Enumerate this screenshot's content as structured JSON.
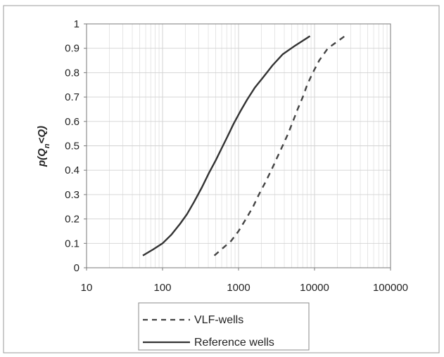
{
  "chart_data": {
    "type": "line",
    "title": "",
    "xlabel": "",
    "ylabel": "p(Q_n<Q)",
    "ylabel_parts": {
      "main": "p(Q",
      "sub": "n",
      "rest": "<Q)"
    },
    "x_scale": "log",
    "xlim": [
      10,
      100000
    ],
    "ylim": [
      0,
      1
    ],
    "x_ticks": [
      10,
      100,
      1000,
      10000,
      100000
    ],
    "x_tick_labels": [
      "10",
      "100",
      "1000",
      "10000",
      "100000"
    ],
    "y_ticks": [
      0,
      0.1,
      0.2,
      0.3,
      0.4,
      0.5,
      0.6,
      0.7,
      0.8,
      0.9,
      1
    ],
    "y_tick_labels": [
      "0",
      "0.1",
      "0.2",
      "0.3",
      "0.4",
      "0.5",
      "0.6",
      "0.7",
      "0.8",
      "0.9",
      "1"
    ],
    "grid": {
      "major_y": true,
      "minor_x": true
    },
    "legend_placement": "bottom",
    "series": [
      {
        "name": "VLF-wells",
        "style": "dashed",
        "color": "#444444",
        "points": [
          [
            480,
            0.05
          ],
          [
            620,
            0.08
          ],
          [
            800,
            0.11
          ],
          [
            1000,
            0.15
          ],
          [
            1250,
            0.2
          ],
          [
            1550,
            0.25
          ],
          [
            1850,
            0.3
          ],
          [
            2250,
            0.35
          ],
          [
            2700,
            0.4
          ],
          [
            3200,
            0.45
          ],
          [
            3800,
            0.5
          ],
          [
            4500,
            0.55
          ],
          [
            5200,
            0.6
          ],
          [
            6000,
            0.65
          ],
          [
            7000,
            0.7
          ],
          [
            8000,
            0.75
          ],
          [
            9500,
            0.8
          ],
          [
            11500,
            0.85
          ],
          [
            15000,
            0.9
          ],
          [
            25000,
            0.95
          ]
        ]
      },
      {
        "name": "Reference wells",
        "style": "solid",
        "color": "#333333",
        "points": [
          [
            55,
            0.05
          ],
          [
            75,
            0.075
          ],
          [
            100,
            0.1
          ],
          [
            130,
            0.135
          ],
          [
            170,
            0.18
          ],
          [
            210,
            0.22
          ],
          [
            260,
            0.27
          ],
          [
            330,
            0.33
          ],
          [
            410,
            0.39
          ],
          [
            500,
            0.44
          ],
          [
            600,
            0.49
          ],
          [
            720,
            0.54
          ],
          [
            860,
            0.59
          ],
          [
            1050,
            0.64
          ],
          [
            1300,
            0.69
          ],
          [
            1650,
            0.74
          ],
          [
            2100,
            0.78
          ],
          [
            2800,
            0.83
          ],
          [
            3800,
            0.875
          ],
          [
            5500,
            0.91
          ],
          [
            8700,
            0.95
          ]
        ]
      }
    ]
  }
}
